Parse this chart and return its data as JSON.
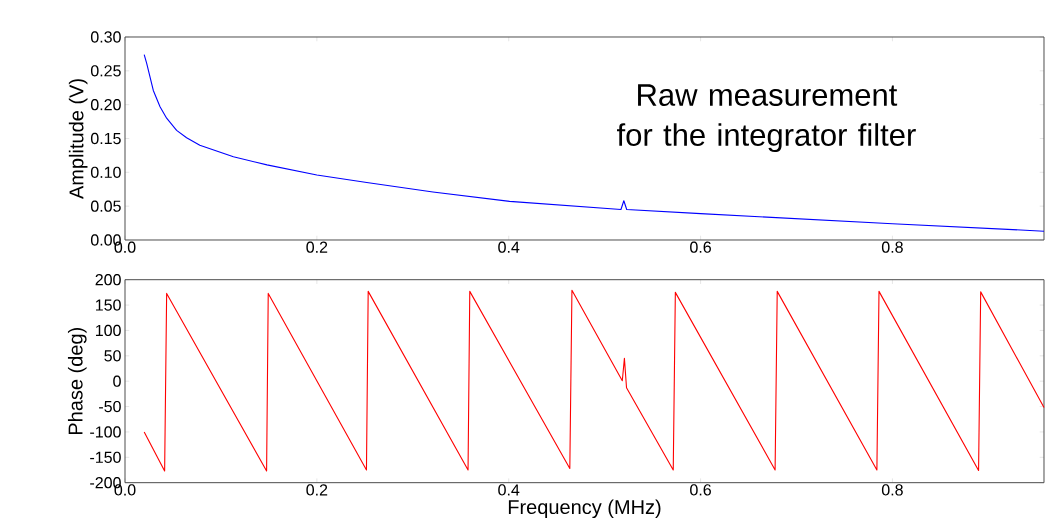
{
  "chart_data": [
    {
      "type": "line",
      "ylabel": "Amplitude (V)",
      "color": "#0000ff",
      "xlim": [
        0,
        0.958
      ],
      "xticks": [
        {
          "value": 0,
          "label": "0.0"
        },
        {
          "value": 0.2,
          "label": "0.2"
        },
        {
          "value": 0.4,
          "label": "0.4"
        },
        {
          "value": 0.6,
          "label": "0.6"
        },
        {
          "value": 0.8,
          "label": "0.8"
        }
      ],
      "ylim": [
        0,
        0.3
      ],
      "yticks": [
        {
          "value": 0,
          "label": "0.00"
        },
        {
          "value": 0.05,
          "label": "0.05"
        },
        {
          "value": 0.1,
          "label": "0.10"
        },
        {
          "value": 0.15,
          "label": "0.15"
        },
        {
          "value": 0.2,
          "label": "0.20"
        },
        {
          "value": 0.25,
          "label": "0.25"
        },
        {
          "value": 0.3,
          "label": "0.30"
        }
      ],
      "annotations": [
        "Raw measurement for the integrator filter"
      ],
      "x": [
        0.02,
        0.0226,
        0.0295,
        0.0365,
        0.0434,
        0.0538,
        0.0642,
        0.078,
        0.113,
        0.148,
        0.2,
        0.252,
        0.321,
        0.401,
        0.517,
        0.52,
        0.523,
        0.6,
        0.8,
        0.958
      ],
      "values": [
        0.274,
        0.261,
        0.221,
        0.197,
        0.18,
        0.162,
        0.151,
        0.14,
        0.123,
        0.111,
        0.096,
        0.085,
        0.071,
        0.057,
        0.045,
        0.058,
        0.045,
        0.039,
        0.024,
        0.013
      ]
    },
    {
      "type": "line",
      "xlabel": "Frequency (MHz)",
      "ylabel": "Phase (deg)",
      "color": "#ff0000",
      "xlim": [
        0,
        0.958
      ],
      "xticks": [
        {
          "value": 0,
          "label": "0.0"
        },
        {
          "value": 0.2,
          "label": "0.2"
        },
        {
          "value": 0.4,
          "label": "0.4"
        },
        {
          "value": 0.6,
          "label": "0.6"
        },
        {
          "value": 0.8,
          "label": "0.8"
        }
      ],
      "ylim": [
        -200,
        200
      ],
      "yticks": [
        -200,
        -150,
        -100,
        -50,
        0,
        50,
        100,
        150,
        200
      ],
      "x": [
        0.02,
        0.0413,
        0.0434,
        0.1476,
        0.1493,
        0.2517,
        0.2535,
        0.3576,
        0.3594,
        0.4637,
        0.4659,
        0.5184,
        0.5206,
        0.5228,
        0.5715,
        0.5737,
        0.6777,
        0.6799,
        0.7838,
        0.786,
        0.8898,
        0.892,
        0.958
      ],
      "values": [
        -100,
        -177,
        173,
        -177,
        173,
        -175,
        177,
        -175,
        177,
        -172,
        179,
        1,
        45,
        -13,
        -175,
        175,
        -175,
        177,
        -175,
        177,
        -176,
        176,
        -52
      ]
    }
  ]
}
